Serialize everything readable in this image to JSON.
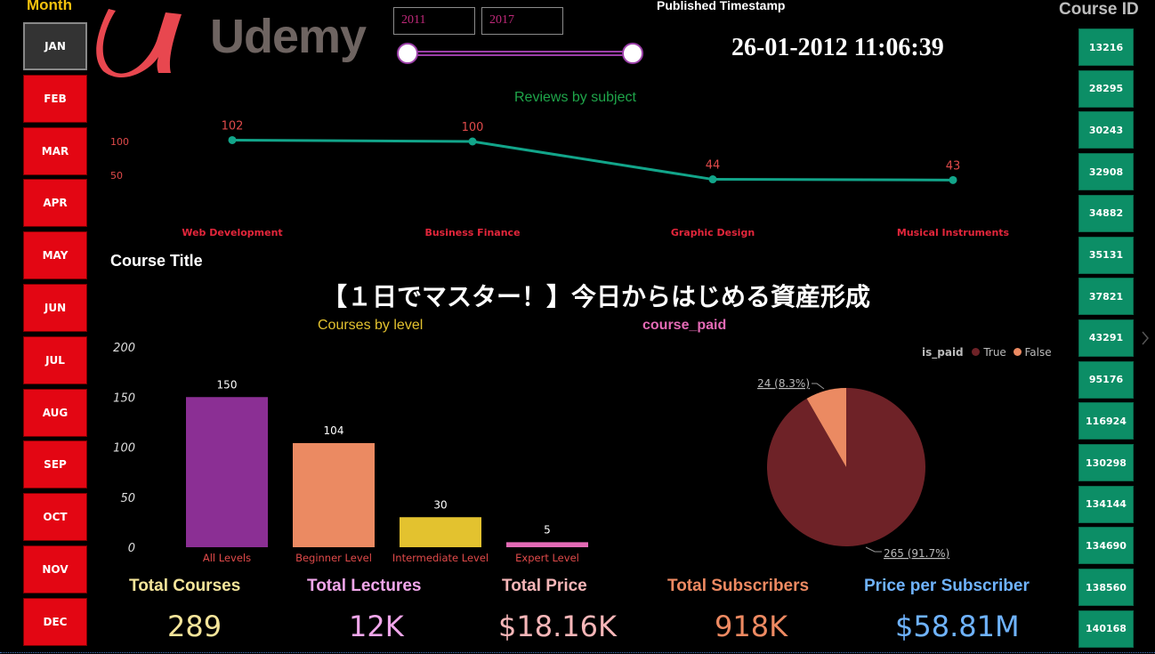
{
  "month_slicer": {
    "title": "Month",
    "items": [
      "JAN",
      "FEB",
      "MAR",
      "APR",
      "MAY",
      "JUN",
      "JUL",
      "AUG",
      "SEP",
      "OCT",
      "NOV",
      "DEC"
    ],
    "selected": "JAN"
  },
  "course_id_slicer": {
    "title": "Course ID",
    "items": [
      "13216",
      "28295",
      "30243",
      "32908",
      "34882",
      "35131",
      "37821",
      "43291",
      "95176",
      "116924",
      "130298",
      "134144",
      "134690",
      "138560",
      "140168"
    ],
    "scroll_icon": "chevron-right-icon"
  },
  "logo": {
    "text": "Udemy",
    "icon": "udemy-u-logo",
    "color": "#e8474f"
  },
  "year_range": {
    "start": "2011",
    "end": "2017",
    "slider_start_fraction": 0.0,
    "slider_end_fraction": 1.0
  },
  "published": {
    "title": "Published Timestamp",
    "value": "26-01-2012 11:06:39"
  },
  "course_title": {
    "label": "Course Title",
    "value": "【１日でマスター！】今日からはじめる資産形成"
  },
  "charts": {
    "reviews_title": "Reviews by subject",
    "level_title": "Courses by level",
    "paid_title": "course_paid",
    "paid_legend": {
      "label": "is_paid",
      "true_label": "True",
      "false_label": "False"
    }
  },
  "chart_data": [
    {
      "type": "line",
      "title": "Reviews by subject",
      "categories": [
        "Web Development",
        "Business Finance",
        "Graphic Design",
        "Musical Instruments"
      ],
      "values": [
        102,
        100,
        44,
        43
      ],
      "data_labels": [
        "102",
        "100",
        "44",
        "43"
      ],
      "y_ticks": [
        "100",
        "50"
      ],
      "color": "#12a58a"
    },
    {
      "type": "bar",
      "title": "Courses by level",
      "categories": [
        "All Levels",
        "Beginner Level",
        "Intermediate Level",
        "Expert Level"
      ],
      "values": [
        150,
        104,
        30,
        5
      ],
      "data_labels": [
        "150",
        "104",
        "30",
        "5"
      ],
      "y_ticks": [
        "200",
        "150",
        "100",
        "50",
        "0"
      ],
      "ylim": [
        0,
        200
      ],
      "colors": [
        "#8b2f94",
        "#eb8a62",
        "#e3c22f",
        "#e36ab5"
      ]
    },
    {
      "type": "pie",
      "title": "course_paid",
      "slices": [
        {
          "name": "True",
          "value": 265,
          "label": "265 (91.7%)",
          "color": "#6e2227"
        },
        {
          "name": "False",
          "value": 24,
          "label": "24 (8.3%)",
          "color": "#eb8a62"
        }
      ]
    }
  ],
  "kpis": [
    {
      "label": "Total Courses",
      "value": "289",
      "color": "#f5e59a"
    },
    {
      "label": "Total Lectures",
      "value": "12K",
      "color": "#f0a6ea"
    },
    {
      "label": "Total Price",
      "value": "$18.16K",
      "color": "#f6b6b8"
    },
    {
      "label": "Total Subscribers",
      "value": "918K",
      "color": "#ee8a62"
    },
    {
      "label": "Price per Subscriber",
      "value": "$58.81M",
      "color": "#6fb3ff"
    }
  ]
}
